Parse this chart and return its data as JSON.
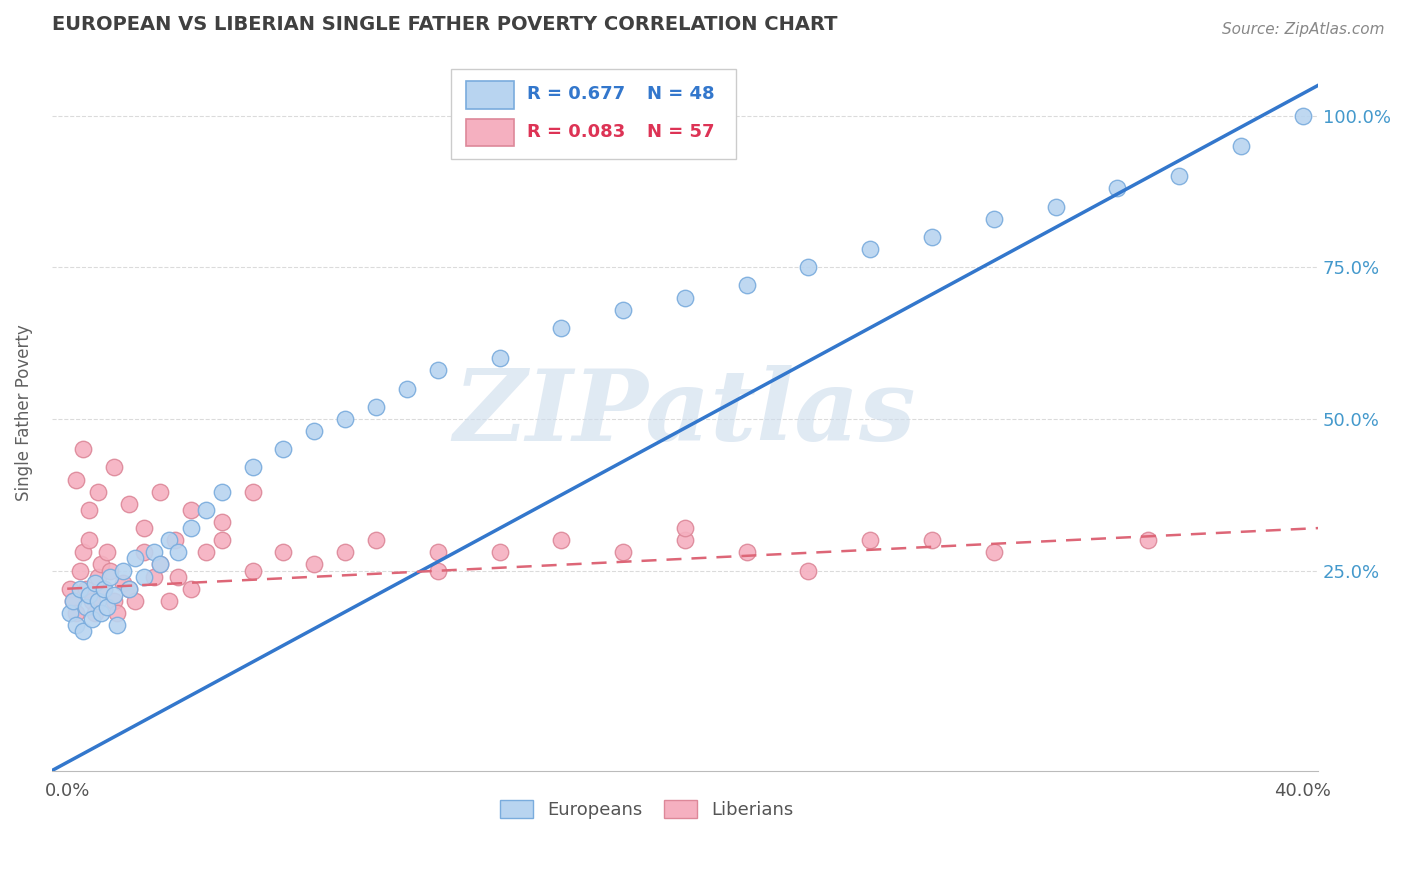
{
  "title": "EUROPEAN VS LIBERIAN SINGLE FATHER POVERTY CORRELATION CHART",
  "source": "Source: ZipAtlas.com",
  "ylabel": "Single Father Poverty",
  "xlim": [
    -0.005,
    0.405
  ],
  "ylim": [
    -0.08,
    1.1
  ],
  "yticks_right": [
    0.25,
    0.5,
    0.75,
    1.0
  ],
  "yticks_right_labels": [
    "25.0%",
    "50.0%",
    "75.0%",
    "100.0%"
  ],
  "legend_r1": "R = 0.677",
  "legend_n1": "N = 48",
  "legend_r2": "R = 0.083",
  "legend_n2": "N = 57",
  "european_color": "#b8d4f0",
  "liberian_color": "#f5b0c0",
  "european_edge": "#7aacdd",
  "liberian_edge": "#dd8899",
  "trend_blue": "#3377cc",
  "trend_pink": "#dd6677",
  "watermark": "ZIPatlas",
  "watermark_color": "#ccdcec",
  "background": "#ffffff",
  "grid_color": "#d8d8d8",
  "title_color": "#404040",
  "axis_label_color": "#606060",
  "europeans_x": [
    0.001,
    0.002,
    0.003,
    0.004,
    0.005,
    0.006,
    0.007,
    0.008,
    0.009,
    0.01,
    0.011,
    0.012,
    0.013,
    0.014,
    0.015,
    0.016,
    0.018,
    0.02,
    0.022,
    0.025,
    0.028,
    0.03,
    0.033,
    0.036,
    0.04,
    0.045,
    0.05,
    0.06,
    0.07,
    0.08,
    0.09,
    0.1,
    0.11,
    0.12,
    0.14,
    0.16,
    0.18,
    0.2,
    0.22,
    0.24,
    0.26,
    0.28,
    0.3,
    0.32,
    0.34,
    0.36,
    0.38,
    0.4
  ],
  "europeans_y": [
    0.18,
    0.2,
    0.16,
    0.22,
    0.15,
    0.19,
    0.21,
    0.17,
    0.23,
    0.2,
    0.18,
    0.22,
    0.19,
    0.24,
    0.21,
    0.16,
    0.25,
    0.22,
    0.27,
    0.24,
    0.28,
    0.26,
    0.3,
    0.28,
    0.32,
    0.35,
    0.38,
    0.42,
    0.45,
    0.48,
    0.5,
    0.52,
    0.55,
    0.58,
    0.6,
    0.65,
    0.68,
    0.7,
    0.72,
    0.75,
    0.78,
    0.8,
    0.83,
    0.85,
    0.88,
    0.9,
    0.95,
    1.0
  ],
  "liberians_x": [
    0.001,
    0.002,
    0.003,
    0.004,
    0.005,
    0.006,
    0.007,
    0.008,
    0.009,
    0.01,
    0.011,
    0.012,
    0.013,
    0.014,
    0.015,
    0.016,
    0.018,
    0.02,
    0.022,
    0.025,
    0.028,
    0.03,
    0.033,
    0.036,
    0.04,
    0.045,
    0.05,
    0.06,
    0.07,
    0.08,
    0.09,
    0.1,
    0.12,
    0.14,
    0.16,
    0.18,
    0.2,
    0.22,
    0.24,
    0.26,
    0.28,
    0.3,
    0.003,
    0.005,
    0.007,
    0.01,
    0.015,
    0.02,
    0.025,
    0.03,
    0.035,
    0.04,
    0.05,
    0.06,
    0.12,
    0.2,
    0.35
  ],
  "liberians_y": [
    0.22,
    0.2,
    0.18,
    0.25,
    0.28,
    0.22,
    0.3,
    0.2,
    0.18,
    0.24,
    0.26,
    0.22,
    0.28,
    0.25,
    0.2,
    0.18,
    0.23,
    0.22,
    0.2,
    0.28,
    0.24,
    0.26,
    0.2,
    0.24,
    0.22,
    0.28,
    0.3,
    0.25,
    0.28,
    0.26,
    0.28,
    0.3,
    0.25,
    0.28,
    0.3,
    0.28,
    0.3,
    0.28,
    0.25,
    0.3,
    0.3,
    0.28,
    0.4,
    0.45,
    0.35,
    0.38,
    0.42,
    0.36,
    0.32,
    0.38,
    0.3,
    0.35,
    0.33,
    0.38,
    0.28,
    0.32,
    0.3
  ],
  "blue_trend_x0": -0.005,
  "blue_trend_y0": -0.08,
  "blue_trend_x1": 0.405,
  "blue_trend_y1": 1.05,
  "pink_trend_x0": 0.0,
  "pink_trend_y0": 0.22,
  "pink_trend_x1": 0.405,
  "pink_trend_y1": 0.32
}
